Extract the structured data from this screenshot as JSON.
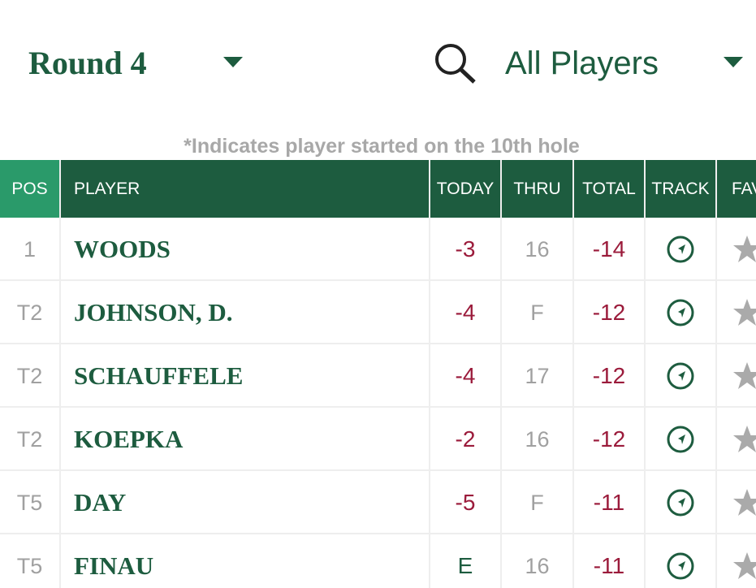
{
  "header": {
    "round": "Round 4",
    "filter": "All Players",
    "note": "*Indicates player started on the 10th hole"
  },
  "table": {
    "columns": [
      "POS",
      "PLAYER",
      "TODAY",
      "THRU",
      "TOTAL",
      "TRACK",
      "FAV"
    ],
    "rows": [
      [
        "1",
        "WOODS",
        "-3",
        "16",
        "-14"
      ],
      [
        "T2",
        "JOHNSON, D.",
        "-4",
        "F",
        "-12"
      ],
      [
        "T2",
        "SCHAUFFELE",
        "-4",
        "17",
        "-12"
      ],
      [
        "T2",
        "KOEPKA",
        "-2",
        "16",
        "-12"
      ],
      [
        "T5",
        "DAY",
        "-5",
        "F",
        "-11"
      ],
      [
        "T5",
        "FINAU",
        "E",
        "16",
        "-11"
      ]
    ]
  }
}
